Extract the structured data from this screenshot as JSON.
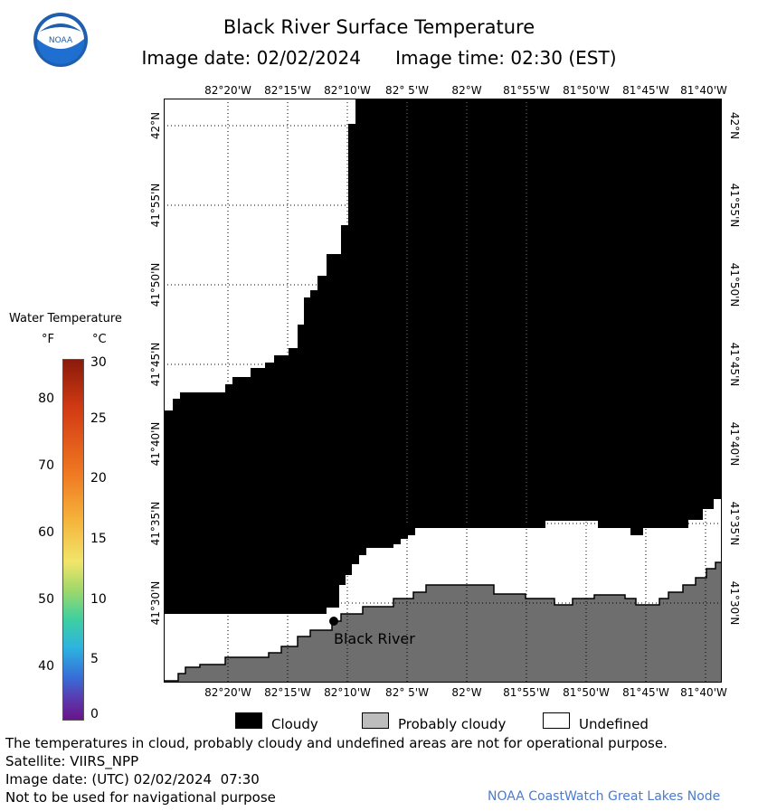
{
  "header": {
    "title": "Black River Surface Temperature",
    "subtitle": "Image date: 02/02/2024      Image time: 02:30 (EST)",
    "logo_text": "NOAA"
  },
  "map": {
    "lon_labels": [
      "82°20'W",
      "82°15'W",
      "82°10'W",
      "82° 5'W",
      "82°W",
      "81°55'W",
      "81°50'W",
      "81°45'W",
      "81°40'W"
    ],
    "lat_labels": [
      "42°N",
      "41°55'N",
      "41°50'N",
      "41°45'N",
      "41°40'N",
      "41°35'N",
      "41°30'N"
    ],
    "place_label": "Black River",
    "colors": {
      "cloudy": "#000000",
      "probably_cloudy": "#6e6e6e",
      "undefined": "#ffffff"
    }
  },
  "legend": {
    "title": "Water Temperature",
    "unit_f": "°F",
    "unit_c": "°C",
    "f_ticks": [
      "80",
      "70",
      "60",
      "50",
      "40"
    ],
    "c_ticks": [
      "30",
      "25",
      "20",
      "15",
      "10",
      "5",
      "0"
    ]
  },
  "key": {
    "cloudy": "Cloudy",
    "probably_cloudy": "Probably cloudy",
    "undefined": "Undefined"
  },
  "footer": {
    "disclaimer": "The temperatures in cloud, probably cloudy and undefined areas are not for operational purpose.",
    "satellite": "Satellite: VIIRS_NPP",
    "utc_date": "Image date: (UTC) 02/02/2024  07:30",
    "nav_warning": "Not to be used for navigational purpose",
    "node": "NOAA CoastWatch Great Lakes Node"
  }
}
